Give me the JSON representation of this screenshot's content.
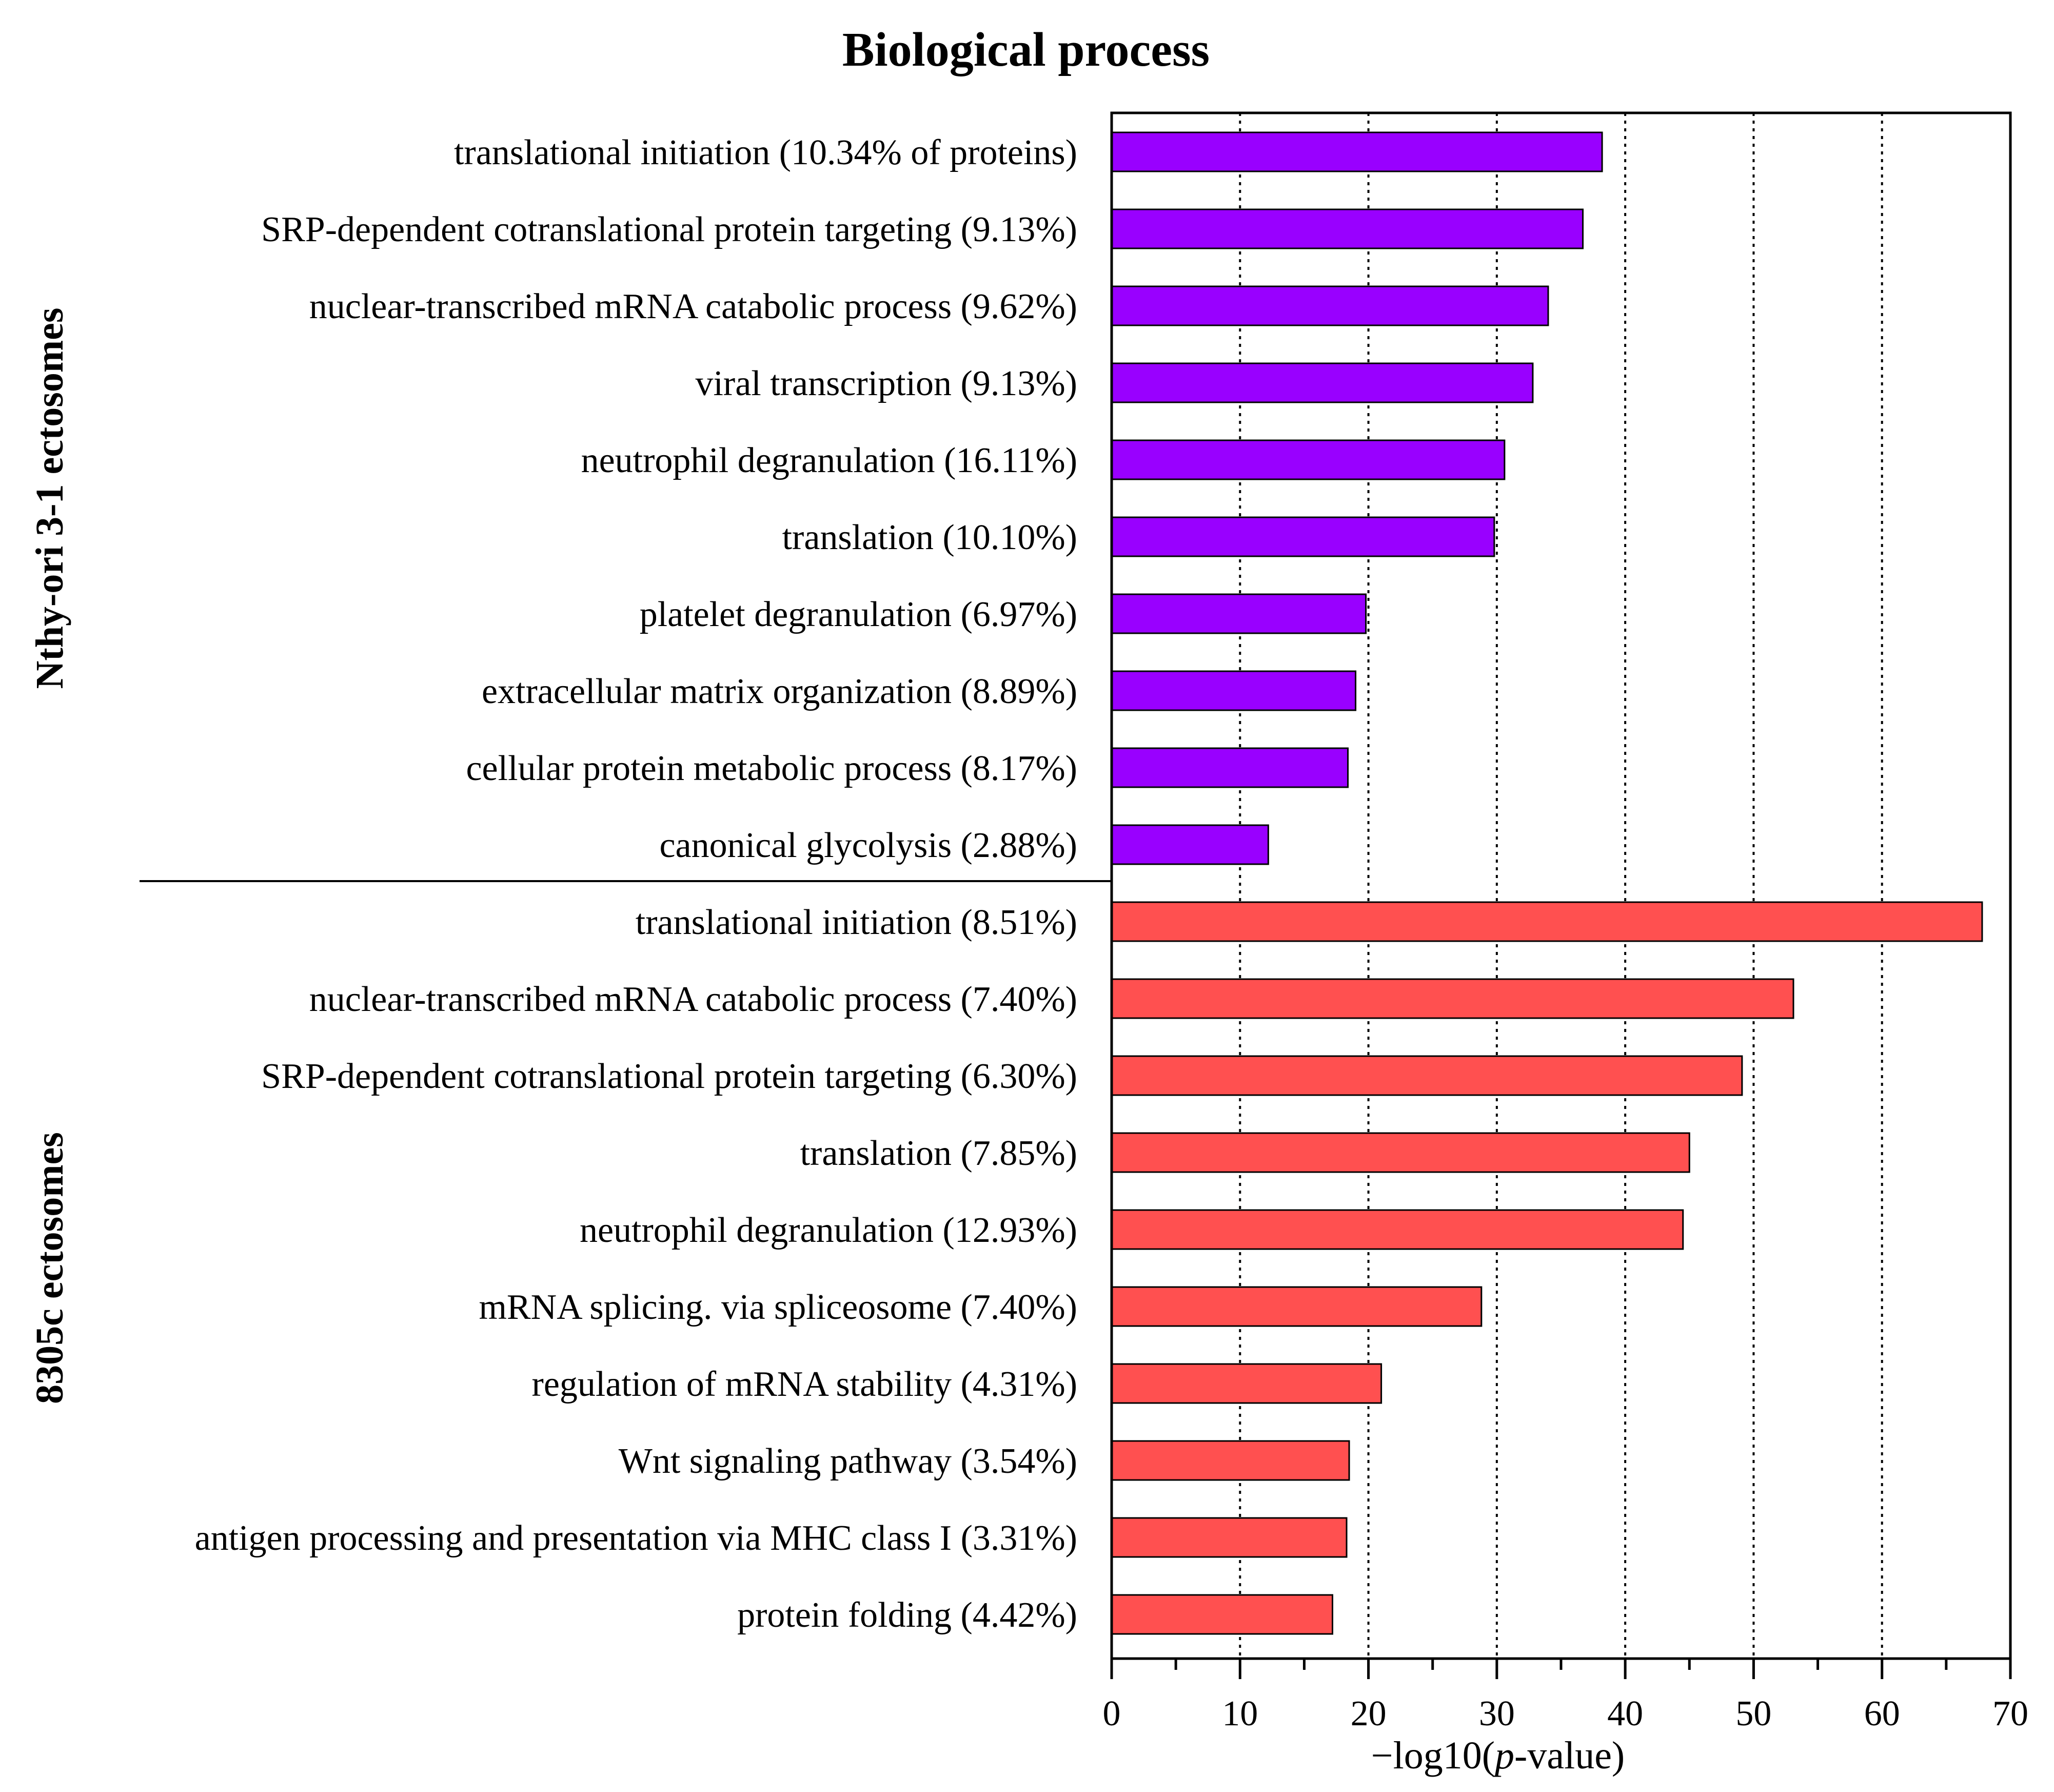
{
  "chart_data": {
    "type": "bar",
    "orientation": "horizontal",
    "title": "Biological process",
    "xlabel_prefix": "−log10(",
    "xlabel_italic": "p",
    "xlabel_suffix": "-value)",
    "xlim": [
      0,
      70
    ],
    "xticks": [
      0,
      10,
      20,
      30,
      40,
      50,
      60,
      70
    ],
    "grid": "vertical dotted",
    "groups": [
      {
        "name": "Nthy-ori 3-1 ectosomes",
        "color": "#9900ff",
        "categories": [
          "translational initiation (10.34% of proteins)",
          "SRP-dependent cotranslational protein targeting (9.13%)",
          "nuclear-transcribed mRNA catabolic process (9.62%)",
          "viral transcription (9.13%)",
          "neutrophil degranulation (16.11%)",
          "translation (10.10%)",
          "platelet degranulation (6.97%)",
          "extracellular matrix organization (8.89%)",
          "cellular protein metabolic process (8.17%)",
          "canonical glycolysis (2.88%)"
        ],
        "values": [
          38.2,
          36.7,
          34.0,
          32.8,
          30.6,
          29.8,
          19.8,
          19.0,
          18.4,
          12.2
        ]
      },
      {
        "name": "8305c ectosomes",
        "color": "#ff5050",
        "categories": [
          "translational initiation (8.51%)",
          "nuclear-transcribed mRNA catabolic process (7.40%)",
          "SRP-dependent cotranslational protein targeting (6.30%)",
          "translation (7.85%)",
          "neutrophil degranulation (12.93%)",
          "mRNA splicing. via spliceosome (7.40%)",
          "regulation of mRNA stability (4.31%)",
          "Wnt signaling pathway (3.54%)",
          "antigen processing and presentation via MHC class I (3.31%)",
          "protein folding (4.42%)"
        ],
        "values": [
          67.8,
          53.1,
          49.1,
          45.0,
          44.5,
          28.8,
          21.0,
          18.5,
          18.3,
          17.2
        ]
      }
    ]
  }
}
